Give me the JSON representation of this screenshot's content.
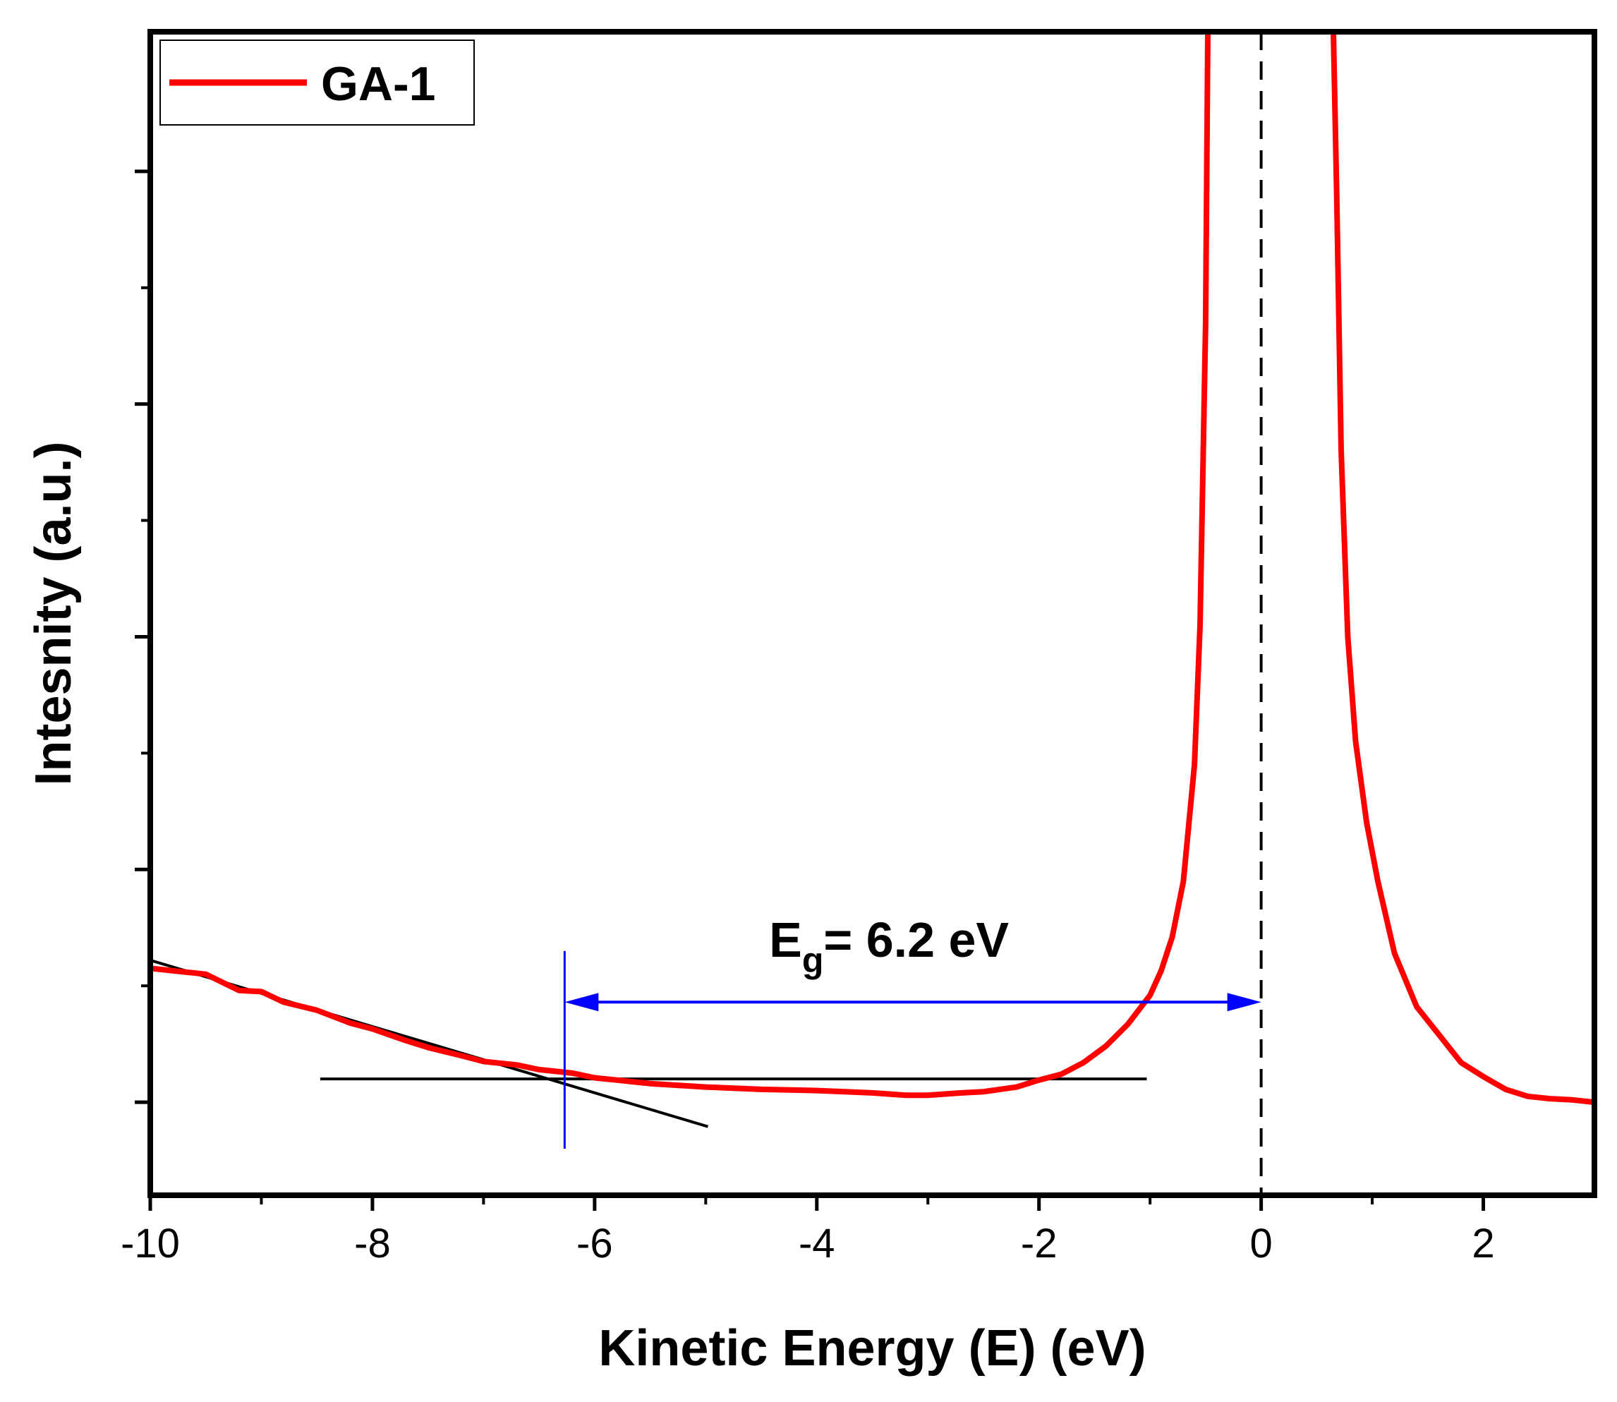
{
  "chart_data": {
    "type": "line",
    "xlabel": "Kinetic Energy (E) (eV)",
    "ylabel": "Intesnity (a.u.)",
    "xlim": [
      -10,
      3
    ],
    "ylim": [
      0,
      100
    ],
    "x_ticks": [
      -10,
      -8,
      -6,
      -4,
      -2,
      0,
      2
    ],
    "x_tick_labels": [
      "-10",
      "-8",
      "-6",
      "-4",
      "-2",
      "0",
      "2"
    ],
    "y_major_ticks": [
      8,
      28,
      48,
      68,
      88
    ],
    "y_minor_ticks": [
      18,
      38,
      58,
      78
    ],
    "y_tick_labels_shown": false,
    "grid": false,
    "legend": {
      "position": "top-left",
      "entries": [
        {
          "name": "GA-1",
          "color": "#ff0000"
        }
      ]
    },
    "series": [
      {
        "name": "GA-1",
        "color": "#ff0000",
        "x": [
          -10,
          -9.7,
          -9.5,
          -9.2,
          -9.0,
          -8.8,
          -8.5,
          -8.2,
          -8.0,
          -7.7,
          -7.5,
          -7.2,
          -7.0,
          -6.7,
          -6.5,
          -6.2,
          -6.0,
          -5.5,
          -5.0,
          -4.5,
          -4.0,
          -3.5,
          -3.2,
          -3.0,
          -2.7,
          -2.5,
          -2.2,
          -2.0,
          -1.8,
          -1.6,
          -1.4,
          -1.2,
          -1.0,
          -0.9,
          -0.8,
          -0.7,
          -0.6,
          -0.55,
          -0.5,
          -0.48,
          0.65,
          0.68,
          0.72,
          0.78,
          0.85,
          0.95,
          1.05,
          1.2,
          1.4,
          1.6,
          1.8,
          2.0,
          2.2,
          2.4,
          2.6,
          2.8,
          3.0
        ],
        "y": [
          19.5,
          19.2,
          19.0,
          17.6,
          17.5,
          16.6,
          15.9,
          14.8,
          14.3,
          13.3,
          12.7,
          12.0,
          11.5,
          11.2,
          10.8,
          10.5,
          10.1,
          9.6,
          9.3,
          9.1,
          9.0,
          8.8,
          8.6,
          8.6,
          8.8,
          8.9,
          9.3,
          9.9,
          10.4,
          11.4,
          12.8,
          14.7,
          17.2,
          19.3,
          22.2,
          27.0,
          37.0,
          49.0,
          75.0,
          100.0,
          100.0,
          86.0,
          64.0,
          48.0,
          39.0,
          32.0,
          27.0,
          20.8,
          16.2,
          13.8,
          11.4,
          10.2,
          9.1,
          8.5,
          8.3,
          8.2,
          8.0
        ]
      }
    ],
    "annotations": {
      "eg_label_main": "E",
      "eg_label_sub": "g",
      "eg_label_rest": "= 6.2 eV",
      "band_gap_eV": 6.2,
      "arrow_from_x": -6.27,
      "arrow_to_x": 0,
      "arrow_y": 16.6,
      "arrow_color": "#0000ff",
      "marker_x": -6.27,
      "marker_y_range": [
        4,
        21
      ],
      "baseline_x_range": [
        -8.47,
        -1.03
      ],
      "baseline_y": 10.0,
      "tangent_from": [
        -10,
        20.2
      ],
      "tangent_to": [
        -4.98,
        5.9
      ],
      "dashed_line_x": 0
    }
  }
}
